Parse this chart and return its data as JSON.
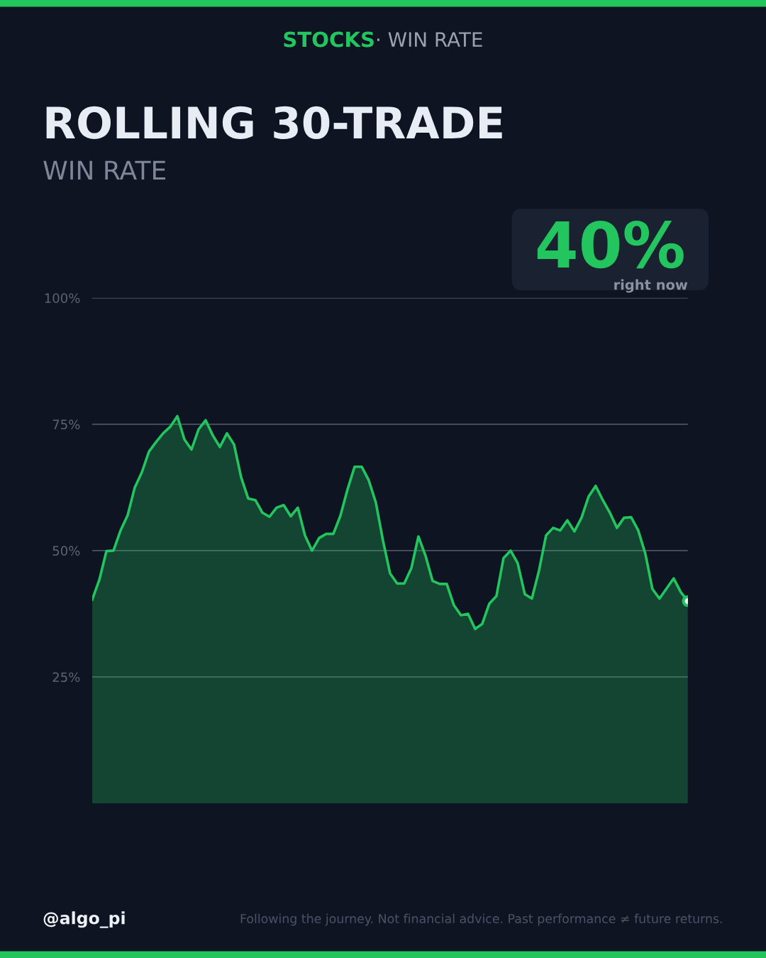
{
  "chart_data": {
    "type": "area",
    "title": "ROLLING 30-TRADE",
    "subtitle": "WIN RATE",
    "annotations": [
      "STOCKS",
      "· WIN RATE",
      "40%",
      "right now",
      "@algo_pi",
      "Following the journey. Not financial advice. Past performance ≠ future returns."
    ],
    "categories": [
      null,
      null,
      null,
      null,
      null,
      null,
      null,
      null,
      null,
      null,
      null,
      null,
      null,
      null,
      null,
      null,
      null,
      null,
      null,
      null,
      null,
      null,
      null,
      null,
      null,
      null,
      null,
      null,
      null,
      null,
      null,
      null,
      null,
      null,
      null,
      null,
      null,
      null,
      null,
      null,
      null,
      null,
      null,
      null,
      null,
      null,
      null,
      null,
      null,
      null,
      null,
      null,
      null,
      null,
      null,
      null,
      null,
      null,
      null,
      null,
      null,
      null,
      null,
      null,
      null,
      null,
      null,
      null,
      null,
      null,
      null,
      null,
      null,
      null,
      null,
      null,
      null,
      null,
      null,
      null,
      null,
      null,
      null,
      null,
      null
    ],
    "series": [
      {
        "color": "#22c55e",
        "values": [
          40.3,
          44.2,
          49.9,
          50,
          54,
          57,
          62.5,
          65.5,
          69.6,
          71.5,
          73.2,
          74.5,
          76.6,
          72,
          70,
          74,
          75.8,
          72.8,
          70.5,
          73.2,
          71,
          64.5,
          60.3,
          60,
          57.5,
          56.7,
          58.5,
          59,
          56.8,
          58.5,
          53,
          50,
          52.5,
          53.3,
          53.3,
          56.9,
          62.1,
          66.6,
          66.6,
          63.9,
          59.5,
          52,
          45.5,
          43.5,
          43.5,
          46.5,
          52.8,
          49,
          44,
          43.4,
          43.4,
          39.2,
          37.2,
          37.5,
          34.5,
          35.5,
          39.5,
          41,
          48.5,
          50,
          47.5,
          41.4,
          40.5,
          46,
          53,
          54.5,
          54,
          56,
          53.8,
          56.5,
          60.7,
          62.8,
          60,
          57.5,
          54.5,
          56.5,
          56.6,
          54,
          49.4,
          42.4,
          40.5,
          42.5,
          44.5,
          41.8,
          40
        ]
      }
    ],
    "ylim": [
      0,
      100
    ],
    "yticks": [
      {
        "value": 25,
        "label": "25%"
      },
      {
        "value": 50,
        "label": "50%"
      },
      {
        "value": 75,
        "label": "75%"
      },
      {
        "value": 100,
        "label": "100%"
      }
    ],
    "grid": "y"
  }
}
